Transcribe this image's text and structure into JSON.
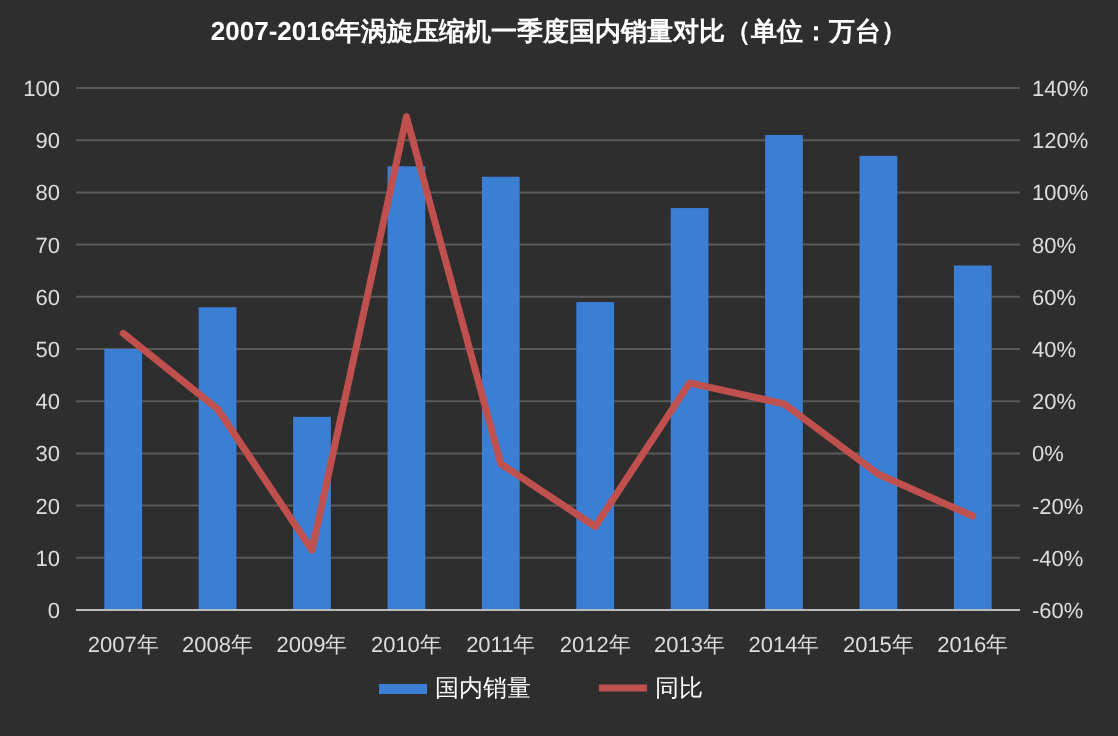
{
  "chart_data": {
    "type": "bar",
    "title": "2007-2016年涡旋压缩机一季度国内销量对比（单位：万台）",
    "categories": [
      "2007年",
      "2008年",
      "2009年",
      "2010年",
      "2011年",
      "2012年",
      "2013年",
      "2014年",
      "2015年",
      "2016年"
    ],
    "series": [
      {
        "name": "国内销量",
        "color": "#3a7fd4",
        "values": [
          50,
          58,
          37,
          85,
          83,
          59,
          77,
          91,
          87,
          66
        ]
      },
      {
        "name": "同比",
        "type": "line",
        "axis": "y2",
        "color": "#c0504d",
        "values": [
          46,
          17,
          -37,
          129,
          -4,
          -28,
          27,
          19,
          -8,
          -24
        ]
      }
    ],
    "ylim": [
      0,
      100
    ],
    "yticks": [
      0,
      10,
      20,
      30,
      40,
      50,
      60,
      70,
      80,
      90,
      100
    ],
    "y2lim": [
      -60,
      140
    ],
    "y2ticks": [
      {
        "value": -60,
        "label": "-60%"
      },
      {
        "value": -40,
        "label": "-40%"
      },
      {
        "value": -20,
        "label": "-20%"
      },
      {
        "value": 0,
        "label": "0%"
      },
      {
        "value": 20,
        "label": "20%"
      },
      {
        "value": 40,
        "label": "40%"
      },
      {
        "value": 60,
        "label": "60%"
      },
      {
        "value": 80,
        "label": "80%"
      },
      {
        "value": 100,
        "label": "100%"
      },
      {
        "value": 120,
        "label": "120%"
      },
      {
        "value": 140,
        "label": "140%"
      }
    ],
    "grid": "y",
    "legend": "bottom"
  }
}
